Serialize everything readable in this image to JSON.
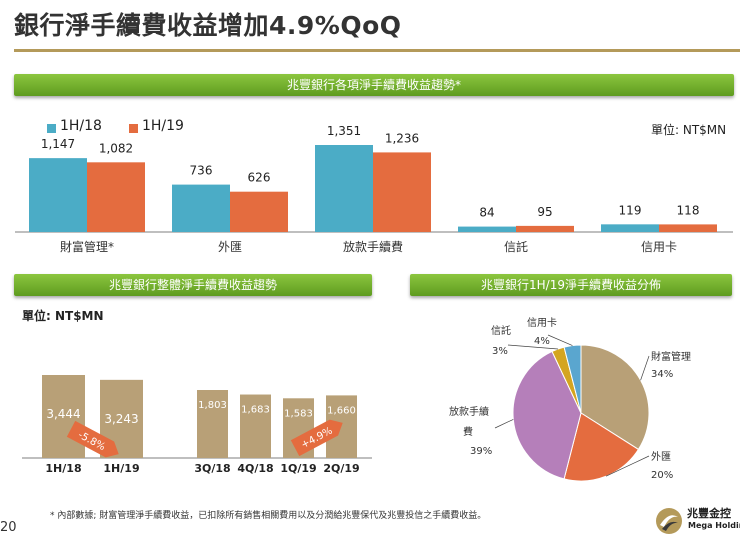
{
  "title": "銀行淨手續費收益增加4.9%QoQ",
  "banner_top": "兆豐銀行各項淨手續費收益趨勢*",
  "banner_left": "兆豐銀行整體淨手續費收益趨勢",
  "banner_right": "兆豐銀行1H/19淨手續費收益分佈",
  "unit_top": "單位: NT$MN",
  "unit_left": "單位: NT$MN",
  "colors": {
    "teal": "#4bacc6",
    "orange": "#e46c3f",
    "tan": "#b8a077",
    "purple": "#b57fba",
    "gold": "#d4a520",
    "sky": "#5aa6cf",
    "green": "#5e9b1f"
  },
  "footnote": "*  內部數據; 財富管理淨手續費收益，已扣除所有銷售相關費用以及分潤給兆豐保代及兆豐投信之手續費收益。",
  "page_number": "20",
  "logo": {
    "name": "兆豐金控",
    "sub": "Mega Holdings"
  },
  "chart_data": [
    {
      "type": "bar",
      "title": "兆豐銀行各項淨手續費收益趨勢*",
      "categories": [
        "財富管理*",
        "外匯",
        "放款手續費",
        "信託",
        "信用卡"
      ],
      "series": [
        {
          "name": "1H/18",
          "values": [
            1147,
            736,
            1351,
            84,
            119
          ],
          "labels": [
            "1,147",
            "736",
            "1,351",
            "84",
            "119"
          ]
        },
        {
          "name": "1H/19",
          "values": [
            1082,
            626,
            1236,
            95,
            118
          ],
          "labels": [
            "1,082",
            "626",
            "1,236",
            "95",
            "118"
          ]
        }
      ],
      "ylim": [
        0,
        1500
      ],
      "unit": "單位: NT$MN"
    },
    {
      "type": "bar",
      "title": "兆豐銀行整體淨手續費收益趨勢",
      "groups": [
        {
          "categories": [
            "1H/18",
            "1H/19"
          ],
          "values": [
            3444,
            3243
          ],
          "labels": [
            "3,444",
            "3,243"
          ],
          "change": "-5.8%"
        },
        {
          "categories": [
            "3Q/18",
            "4Q/18",
            "1Q/19",
            "2Q/19"
          ],
          "values": [
            1803,
            1683,
            1583,
            1660
          ],
          "labels": [
            "1,803",
            "1,683",
            "1,583",
            "1,660"
          ],
          "change": "+4.9%"
        }
      ],
      "unit": "單位: NT$MN"
    },
    {
      "type": "pie",
      "title": "兆豐銀行1H/19淨手續費收益分佈",
      "slices": [
        {
          "label": "財富管理",
          "value": 34,
          "display": "34%"
        },
        {
          "label": "外匯",
          "value": 20,
          "display": "20%"
        },
        {
          "label": "放款手續費",
          "value": 39,
          "display": "39%"
        },
        {
          "label": "信託",
          "value": 3,
          "display": "3%"
        },
        {
          "label": "信用卡",
          "value": 4,
          "display": "4%"
        }
      ]
    }
  ]
}
